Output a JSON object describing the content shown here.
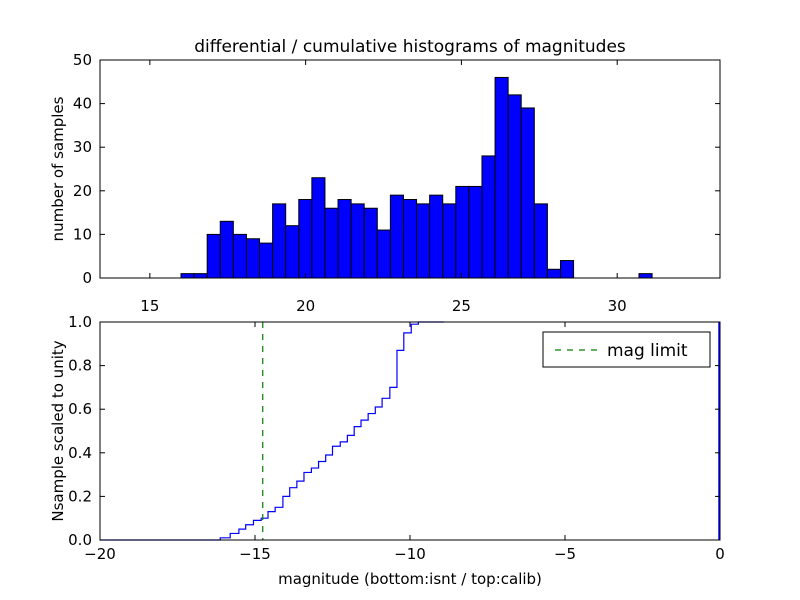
{
  "chart_data": [
    {
      "type": "bar",
      "title": "differential / cumulative histograms of magnitudes",
      "xlabel": "",
      "ylabel": "number of samples",
      "xlim": [
        13.4,
        33.3
      ],
      "ylim": [
        0,
        50
      ],
      "xticks": [
        15,
        20,
        25,
        30
      ],
      "yticks": [
        0,
        10,
        20,
        30,
        40,
        50
      ],
      "x_tick_position": "bottom",
      "grid": false,
      "bar_color": "#0000ff",
      "edge_color": "#000000",
      "bin_width": 0.42,
      "bins": [
        {
          "x": 16.0,
          "value": 1
        },
        {
          "x": 16.42,
          "value": 1
        },
        {
          "x": 16.84,
          "value": 10
        },
        {
          "x": 17.26,
          "value": 13
        },
        {
          "x": 17.68,
          "value": 10
        },
        {
          "x": 18.1,
          "value": 9
        },
        {
          "x": 18.52,
          "value": 8
        },
        {
          "x": 18.94,
          "value": 17
        },
        {
          "x": 19.36,
          "value": 12
        },
        {
          "x": 19.78,
          "value": 18
        },
        {
          "x": 20.2,
          "value": 23
        },
        {
          "x": 20.62,
          "value": 16
        },
        {
          "x": 21.04,
          "value": 18
        },
        {
          "x": 21.46,
          "value": 17
        },
        {
          "x": 21.88,
          "value": 16
        },
        {
          "x": 22.3,
          "value": 11
        },
        {
          "x": 22.72,
          "value": 19
        },
        {
          "x": 23.14,
          "value": 18
        },
        {
          "x": 23.56,
          "value": 17
        },
        {
          "x": 23.98,
          "value": 19
        },
        {
          "x": 24.4,
          "value": 17
        },
        {
          "x": 24.82,
          "value": 21
        },
        {
          "x": 25.24,
          "value": 21
        },
        {
          "x": 25.66,
          "value": 28
        },
        {
          "x": 26.08,
          "value": 46
        },
        {
          "x": 26.5,
          "value": 42
        },
        {
          "x": 26.92,
          "value": 39
        },
        {
          "x": 27.34,
          "value": 17
        },
        {
          "x": 27.76,
          "value": 2
        },
        {
          "x": 28.18,
          "value": 4
        },
        {
          "x": 30.7,
          "value": 1
        }
      ]
    },
    {
      "type": "line",
      "xlabel": "magnitude (bottom:isnt / top:calib)",
      "ylabel": "Nsample scaled to unity",
      "xlim": [
        -20,
        0
      ],
      "ylim": [
        0,
        1.0
      ],
      "xticks": [
        -20,
        -15,
        -10,
        -5,
        0
      ],
      "xtick_labels": [
        "−20",
        "−15",
        "−10",
        "−5",
        "0"
      ],
      "yticks": [
        0,
        0.2,
        0.4,
        0.6,
        0.8,
        1.0
      ],
      "ytick_labels": [
        "0.0",
        "0.2",
        "0.4",
        "0.6",
        "0.8",
        "1.0"
      ],
      "grid": false,
      "legend_position": "top-right",
      "series": [
        {
          "style": "step",
          "color": "#0000ff",
          "x": [
            -20.0,
            -16.12,
            -16.12,
            -15.8,
            -15.8,
            -15.52,
            -15.52,
            -15.3,
            -15.3,
            -15.05,
            -15.05,
            -14.8,
            -14.8,
            -14.58,
            -14.58,
            -14.35,
            -14.35,
            -14.1,
            -14.1,
            -13.88,
            -13.88,
            -13.65,
            -13.65,
            -13.42,
            -13.42,
            -13.18,
            -13.18,
            -12.95,
            -12.95,
            -12.72,
            -12.72,
            -12.5,
            -12.5,
            -12.25,
            -12.25,
            -12.02,
            -12.02,
            -11.8,
            -11.8,
            -11.58,
            -11.58,
            -11.35,
            -11.35,
            -11.12,
            -11.12,
            -10.9,
            -10.9,
            -10.65,
            -10.65,
            -10.42,
            -10.42,
            -10.2,
            -10.2,
            -9.96,
            -9.96,
            -9.73,
            -9.73,
            -9.5,
            -9.5,
            -9.28,
            -9.28,
            -9.05,
            -9.05,
            -8.9
          ],
          "y": [
            0.0,
            0.0,
            0.01,
            0.01,
            0.03,
            0.03,
            0.05,
            0.05,
            0.07,
            0.07,
            0.09,
            0.09,
            0.1,
            0.1,
            0.13,
            0.13,
            0.15,
            0.15,
            0.2,
            0.2,
            0.24,
            0.24,
            0.27,
            0.27,
            0.31,
            0.31,
            0.33,
            0.33,
            0.36,
            0.36,
            0.39,
            0.39,
            0.43,
            0.43,
            0.45,
            0.45,
            0.48,
            0.48,
            0.52,
            0.52,
            0.55,
            0.55,
            0.58,
            0.58,
            0.61,
            0.61,
            0.65,
            0.65,
            0.7,
            0.7,
            0.87,
            0.87,
            0.95,
            0.95,
            0.99,
            0.99,
            1.0,
            1.0,
            1.0,
            1.0,
            1.0,
            1.0,
            1.0,
            1.0
          ]
        },
        {
          "name": "mag limit",
          "style": "dashed-vertical",
          "color": "#008000",
          "x_value": -14.75
        }
      ],
      "right_edge_line": {
        "x_value": 0,
        "y_from": 0,
        "y_to": 1.0,
        "color": "#0000ff"
      }
    }
  ]
}
